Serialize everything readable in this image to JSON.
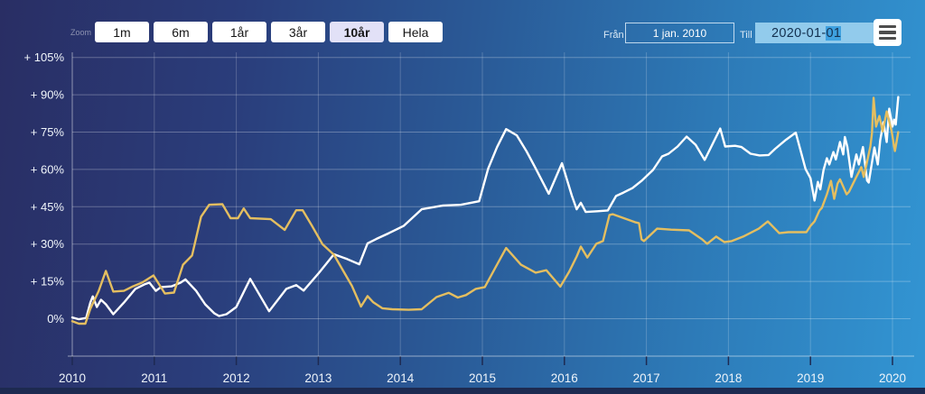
{
  "toolbar": {
    "zoom_label": "Zoom",
    "ranges": [
      {
        "label": "1m"
      },
      {
        "label": "6m"
      },
      {
        "label": "1år"
      },
      {
        "label": "3år"
      },
      {
        "label": "10år"
      },
      {
        "label": "Hela"
      }
    ],
    "selected_range": "10år",
    "from_label": "Från",
    "from_value": "1 jan. 2010",
    "to_label": "Till",
    "to_value": "2020-01-01",
    "to_value_prefix": "2020-01-",
    "to_value_selected": "01",
    "selected_button_color": "#e2e1f7",
    "to_input_color": "#92cbec",
    "to_selection_color": "#3fa1e0"
  },
  "chart_data": {
    "type": "line",
    "title": "",
    "xlabel": "",
    "ylabel": "",
    "grid": true,
    "legend": "none",
    "xlim": [
      2010,
      2020.25
    ],
    "ylim": [
      -15,
      110
    ],
    "x_axis": {
      "ticks": [
        {
          "year": 2010,
          "label": "2010"
        },
        {
          "year": 2011,
          "label": "2011"
        },
        {
          "year": 2012,
          "label": "2012"
        },
        {
          "year": 2013,
          "label": "2013"
        },
        {
          "year": 2014,
          "label": "2014"
        },
        {
          "year": 2015,
          "label": "2015"
        },
        {
          "year": 2016,
          "label": "2016"
        },
        {
          "year": 2017,
          "label": "2017"
        },
        {
          "year": 2018,
          "label": "2018"
        },
        {
          "year": 2019,
          "label": "2019"
        },
        {
          "year": 2020,
          "label": "2020"
        }
      ]
    },
    "y_axis": {
      "unit": "%",
      "ticks": [
        {
          "value": 105,
          "label": "+ 105%"
        },
        {
          "value": 90,
          "label": "+ 90%"
        },
        {
          "value": 75,
          "label": "+ 75%"
        },
        {
          "value": 60,
          "label": "+ 60%"
        },
        {
          "value": 45,
          "label": "+ 45%"
        },
        {
          "value": 30,
          "label": "+ 30%"
        },
        {
          "value": 15,
          "label": "+ 15%"
        },
        {
          "value": 0,
          "label": "0%"
        }
      ]
    },
    "series": [
      {
        "name": "gold",
        "color": "#e4be60",
        "points": [
          [
            2010.0,
            -1
          ],
          [
            2010.08,
            -2
          ],
          [
            2010.16,
            -2
          ],
          [
            2010.22,
            4
          ],
          [
            2010.32,
            11
          ],
          [
            2010.41,
            19.2
          ],
          [
            2010.5,
            10.9
          ],
          [
            2010.63,
            11.2
          ],
          [
            2010.74,
            13
          ],
          [
            2010.85,
            14.5
          ],
          [
            2010.99,
            17.4
          ],
          [
            2011.13,
            10.1
          ],
          [
            2011.24,
            10.5
          ],
          [
            2011.35,
            21.7
          ],
          [
            2011.46,
            25.4
          ],
          [
            2011.57,
            41
          ],
          [
            2011.67,
            45.8
          ],
          [
            2011.83,
            46
          ],
          [
            2011.93,
            40.4
          ],
          [
            2012.02,
            40.4
          ],
          [
            2012.09,
            44.3
          ],
          [
            2012.17,
            40.4
          ],
          [
            2012.42,
            40
          ],
          [
            2012.59,
            35.7
          ],
          [
            2012.73,
            43.6
          ],
          [
            2012.81,
            43.6
          ],
          [
            2012.92,
            37.5
          ],
          [
            2013.05,
            30
          ],
          [
            2013.19,
            25.7
          ],
          [
            2013.41,
            13.2
          ],
          [
            2013.52,
            4.9
          ],
          [
            2013.6,
            9.1
          ],
          [
            2013.67,
            6.6
          ],
          [
            2013.78,
            4.2
          ],
          [
            2013.9,
            3.8
          ],
          [
            2014.1,
            3.6
          ],
          [
            2014.26,
            3.8
          ],
          [
            2014.44,
            8.7
          ],
          [
            2014.59,
            10.4
          ],
          [
            2014.7,
            8.5
          ],
          [
            2014.8,
            9.5
          ],
          [
            2014.92,
            12
          ],
          [
            2015.03,
            12.7
          ],
          [
            2015.15,
            20
          ],
          [
            2015.29,
            28.4
          ],
          [
            2015.47,
            21.7
          ],
          [
            2015.65,
            18.5
          ],
          [
            2015.78,
            19.5
          ],
          [
            2015.95,
            12.9
          ],
          [
            2016.06,
            19
          ],
          [
            2016.15,
            25
          ],
          [
            2016.2,
            29
          ],
          [
            2016.28,
            24.6
          ],
          [
            2016.39,
            30.1
          ],
          [
            2016.47,
            31.2
          ],
          [
            2016.55,
            41.7
          ],
          [
            2016.59,
            42
          ],
          [
            2016.86,
            38.8
          ],
          [
            2016.91,
            38.4
          ],
          [
            2016.94,
            31.9
          ],
          [
            2016.97,
            31.2
          ],
          [
            2017.13,
            36.2
          ],
          [
            2017.3,
            35.8
          ],
          [
            2017.52,
            35.5
          ],
          [
            2017.68,
            31.9
          ],
          [
            2017.74,
            30.1
          ],
          [
            2017.85,
            33
          ],
          [
            2017.95,
            30.8
          ],
          [
            2018.04,
            31.2
          ],
          [
            2018.18,
            33
          ],
          [
            2018.37,
            36.2
          ],
          [
            2018.48,
            39.1
          ],
          [
            2018.62,
            34.4
          ],
          [
            2018.73,
            34.8
          ],
          [
            2018.95,
            34.8
          ],
          [
            2019.0,
            37.3
          ],
          [
            2019.05,
            39.1
          ],
          [
            2019.11,
            43.5
          ],
          [
            2019.14,
            44.6
          ],
          [
            2019.2,
            50
          ],
          [
            2019.25,
            55.4
          ],
          [
            2019.29,
            48.2
          ],
          [
            2019.33,
            54.3
          ],
          [
            2019.36,
            56
          ],
          [
            2019.44,
            50
          ],
          [
            2019.47,
            51
          ],
          [
            2019.56,
            57
          ],
          [
            2019.62,
            60.9
          ],
          [
            2019.65,
            57
          ],
          [
            2019.73,
            69.2
          ],
          [
            2019.75,
            74.6
          ],
          [
            2019.77,
            88.8
          ],
          [
            2019.8,
            77.2
          ],
          [
            2019.84,
            81.5
          ],
          [
            2019.88,
            75.3
          ],
          [
            2019.93,
            83.3
          ],
          [
            2019.99,
            75.3
          ],
          [
            2020.02,
            69.2
          ],
          [
            2020.03,
            67.4
          ],
          [
            2020.07,
            75
          ]
        ]
      },
      {
        "name": "white",
        "color": "#ffffff",
        "points": [
          [
            2010.0,
            0.5
          ],
          [
            2010.08,
            -0.2
          ],
          [
            2010.17,
            0.3
          ],
          [
            2010.22,
            6.5
          ],
          [
            2010.25,
            9
          ],
          [
            2010.3,
            4.7
          ],
          [
            2010.35,
            7.6
          ],
          [
            2010.41,
            5.8
          ],
          [
            2010.5,
            1.8
          ],
          [
            2010.63,
            6.5
          ],
          [
            2010.77,
            12
          ],
          [
            2010.88,
            13.8
          ],
          [
            2010.94,
            14.5
          ],
          [
            2011.02,
            11.2
          ],
          [
            2011.08,
            12.7
          ],
          [
            2011.21,
            13
          ],
          [
            2011.32,
            14.5
          ],
          [
            2011.38,
            15.8
          ],
          [
            2011.51,
            11.2
          ],
          [
            2011.62,
            5.8
          ],
          [
            2011.73,
            2.2
          ],
          [
            2011.79,
            1.1
          ],
          [
            2011.88,
            1.8
          ],
          [
            2012.0,
            4.7
          ],
          [
            2012.17,
            16
          ],
          [
            2012.4,
            3
          ],
          [
            2012.61,
            12
          ],
          [
            2012.73,
            13.5
          ],
          [
            2012.82,
            11.3
          ],
          [
            2013.01,
            18.5
          ],
          [
            2013.19,
            25.9
          ],
          [
            2013.35,
            24
          ],
          [
            2013.5,
            21.9
          ],
          [
            2013.6,
            30.3
          ],
          [
            2013.71,
            32.1
          ],
          [
            2013.86,
            34.4
          ],
          [
            2014.04,
            37.3
          ],
          [
            2014.26,
            44
          ],
          [
            2014.52,
            45.5
          ],
          [
            2014.74,
            45.8
          ],
          [
            2014.96,
            47.2
          ],
          [
            2015.07,
            60.3
          ],
          [
            2015.18,
            69
          ],
          [
            2015.29,
            76.2
          ],
          [
            2015.42,
            73.7
          ],
          [
            2015.54,
            67.2
          ],
          [
            2015.64,
            61
          ],
          [
            2015.81,
            50.2
          ],
          [
            2015.97,
            62.5
          ],
          [
            2016.09,
            49.5
          ],
          [
            2016.15,
            44
          ],
          [
            2016.2,
            46.6
          ],
          [
            2016.26,
            42.9
          ],
          [
            2016.4,
            43.2
          ],
          [
            2016.53,
            43.5
          ],
          [
            2016.63,
            49.3
          ],
          [
            2016.72,
            50.7
          ],
          [
            2016.83,
            52.5
          ],
          [
            2016.94,
            55.4
          ],
          [
            2017.08,
            59.8
          ],
          [
            2017.19,
            65.2
          ],
          [
            2017.27,
            66.3
          ],
          [
            2017.38,
            69.2
          ],
          [
            2017.49,
            73.2
          ],
          [
            2017.6,
            69.9
          ],
          [
            2017.71,
            63.8
          ],
          [
            2017.9,
            76.4
          ],
          [
            2017.96,
            69.2
          ],
          [
            2018.08,
            69.5
          ],
          [
            2018.16,
            69
          ],
          [
            2018.27,
            66.3
          ],
          [
            2018.38,
            65.6
          ],
          [
            2018.49,
            65.8
          ],
          [
            2018.57,
            68.3
          ],
          [
            2018.7,
            71.9
          ],
          [
            2018.82,
            74.8
          ],
          [
            2018.94,
            60.1
          ],
          [
            2019.0,
            56.5
          ],
          [
            2019.05,
            47.5
          ],
          [
            2019.09,
            55
          ],
          [
            2019.12,
            52
          ],
          [
            2019.16,
            59.8
          ],
          [
            2019.2,
            64.5
          ],
          [
            2019.23,
            62
          ],
          [
            2019.28,
            67
          ],
          [
            2019.31,
            64
          ],
          [
            2019.36,
            71
          ],
          [
            2019.4,
            66
          ],
          [
            2019.42,
            73
          ],
          [
            2019.45,
            69
          ],
          [
            2019.5,
            57
          ],
          [
            2019.56,
            66
          ],
          [
            2019.59,
            62
          ],
          [
            2019.64,
            69
          ],
          [
            2019.69,
            55.5
          ],
          [
            2019.71,
            54.7
          ],
          [
            2019.78,
            68.8
          ],
          [
            2019.82,
            62
          ],
          [
            2019.85,
            71.7
          ],
          [
            2019.89,
            79
          ],
          [
            2019.93,
            71
          ],
          [
            2019.96,
            84.4
          ],
          [
            2020.0,
            77.2
          ],
          [
            2020.02,
            80
          ],
          [
            2020.04,
            78
          ],
          [
            2020.07,
            89.1
          ]
        ]
      }
    ]
  }
}
